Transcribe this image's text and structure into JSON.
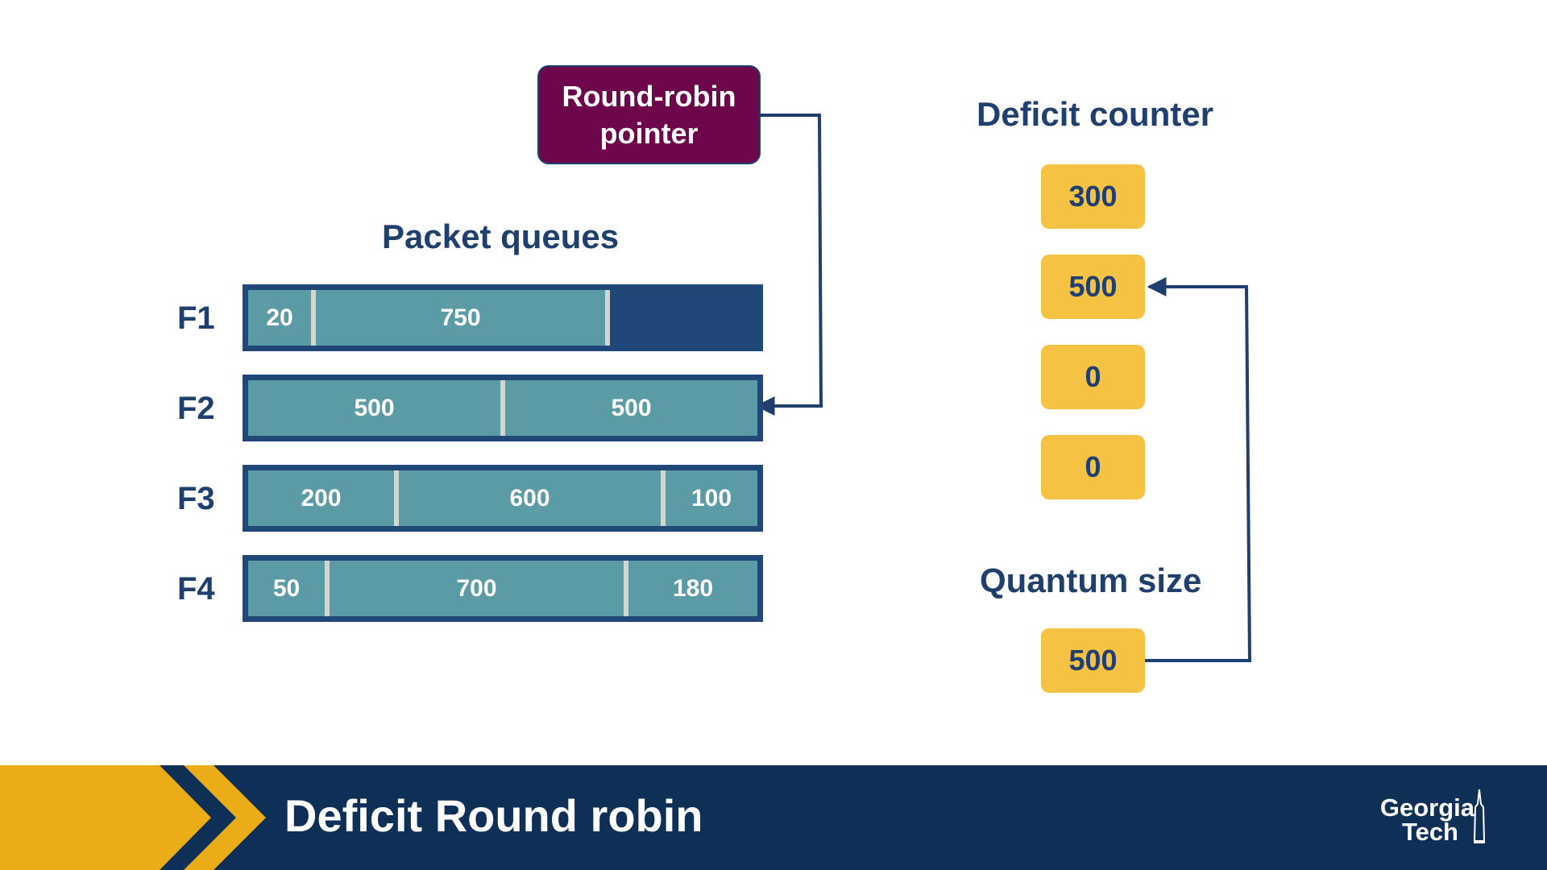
{
  "pointer": {
    "line1": "Round-robin",
    "line2": "pointer"
  },
  "packet_queues_title": "Packet queues",
  "deficit_counter_title": "Deficit counter",
  "quantum_size_title": "Quantum size",
  "flows": [
    {
      "label": "F1",
      "packets": [
        "20",
        "750"
      ]
    },
    {
      "label": "F2",
      "packets": [
        "500",
        "500"
      ]
    },
    {
      "label": "F3",
      "packets": [
        "200",
        "600",
        "100"
      ]
    },
    {
      "label": "F4",
      "packets": [
        "50",
        "700",
        "180"
      ]
    }
  ],
  "deficit_counters": [
    "300",
    "500",
    "0",
    "0"
  ],
  "quantum_size": "500",
  "slide_title": "Deficit Round robin",
  "logo": {
    "line1": "Georgia",
    "line2": "Tech"
  },
  "colors": {
    "navy": "#1f3f6e",
    "pointer_fill": "#6d064b",
    "packet_fill": "#5b9ba5",
    "counter_fill": "#f6c243",
    "banner": "#0e3057",
    "gold": "#eaac17"
  },
  "icons": [
    "arrow-right-icon",
    "arrow-left-icon",
    "tech-tower-icon"
  ]
}
